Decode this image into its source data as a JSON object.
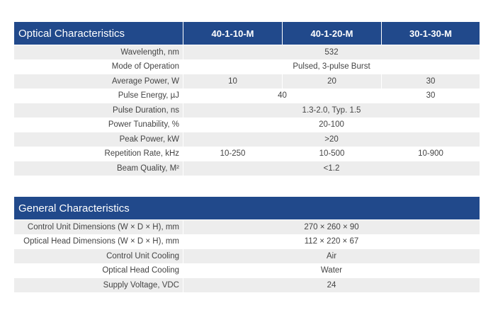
{
  "optical": {
    "title": "Optical Characteristics",
    "models": [
      "40-1-10-M",
      "40-1-20-M",
      "30-1-30-M"
    ],
    "rows": [
      {
        "label": "Wavelength, nm",
        "value": "532"
      },
      {
        "label": "Mode of Operation",
        "value": "Pulsed, 3-pulse Burst"
      },
      {
        "label": "Average Power, W",
        "values": [
          "10",
          "20",
          "30"
        ]
      },
      {
        "label": "Pulse Energy, µJ",
        "values": [
          "40",
          "30"
        ]
      },
      {
        "label": "Pulse Duration, ns",
        "value": "1.3-2.0, Typ. 1.5"
      },
      {
        "label": "Power Tunability, %",
        "value": "20-100"
      },
      {
        "label": "Peak Power, kW",
        "value": ">20"
      },
      {
        "label": "Repetition Rate, kHz",
        "values": [
          "10-250",
          "10-500",
          "10-900"
        ]
      },
      {
        "label": "Beam Quality, M²",
        "value": "<1.2"
      }
    ]
  },
  "general": {
    "title": "General Characteristics",
    "rows": [
      {
        "label": "Control Unit Dimensions (W × D × H), mm",
        "value": "270 × 260 × 90"
      },
      {
        "label": "Optical Head Dimensions (W × D × H), mm",
        "value": "112 × 220 × 67"
      },
      {
        "label": "Control Unit Cooling",
        "value": "Air"
      },
      {
        "label": "Optical Head Cooling",
        "value": "Water"
      },
      {
        "label": "Supply Voltage, VDC",
        "value": "24"
      }
    ]
  }
}
